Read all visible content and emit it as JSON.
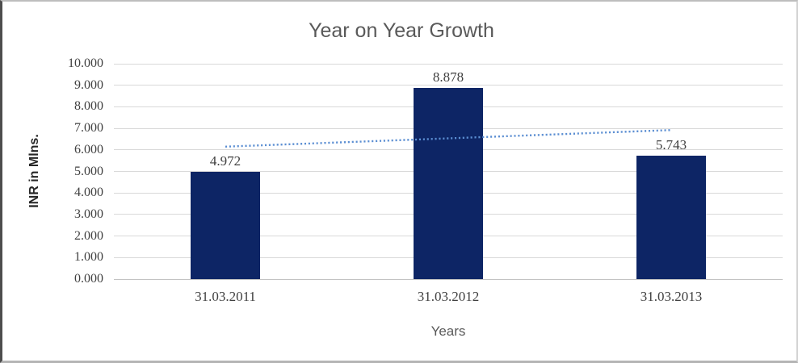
{
  "chart_data": {
    "type": "bar",
    "title": "Year on Year Growth",
    "xlabel": "Years",
    "ylabel": "INR in Mlns.",
    "categories": [
      "31.03.2011",
      "31.03.2012",
      "31.03.2013"
    ],
    "values": [
      4.972,
      8.878,
      5.743
    ],
    "data_labels": [
      "4.972",
      "8.878",
      "5.743"
    ],
    "ylim": [
      0,
      10
    ],
    "ytick_step": 1,
    "ytick_labels": [
      "0.000",
      "1.000",
      "2.000",
      "3.000",
      "4.000",
      "5.000",
      "6.000",
      "7.000",
      "8.000",
      "9.000",
      "10.000"
    ],
    "grid": true,
    "legend": "none",
    "trendline": {
      "type": "linear",
      "style": "dotted",
      "start_value": 6.15,
      "end_value": 6.92
    },
    "colors": {
      "bar": "#0d2565",
      "trendline": "#5b8ed2",
      "gridline": "#d9d9d9",
      "baseline": "#c3c3c3",
      "title_text": "#595959",
      "tick_text": "#404040"
    }
  }
}
